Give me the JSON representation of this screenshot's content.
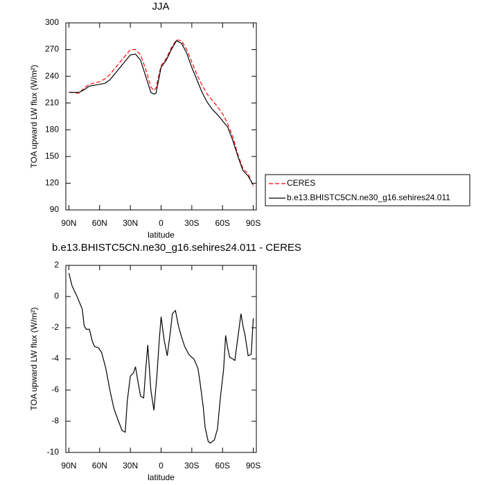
{
  "chart_data": [
    {
      "type": "line",
      "title": "JJA",
      "xlabel": "latitude",
      "ylabel": "TOA upward LW flux (W/m²)",
      "x": [
        90,
        80,
        75,
        70,
        60,
        55,
        50,
        40,
        30,
        25,
        20,
        15,
        10,
        7,
        5,
        0,
        -5,
        -10,
        -15,
        -20,
        -25,
        -30,
        -35,
        -40,
        -45,
        -50,
        -55,
        -60,
        -65,
        -70,
        -75,
        -80,
        -85,
        -90
      ],
      "series": [
        {
          "name": "CERES",
          "color": "#ff0000",
          "dashed": true,
          "values": [
            222,
            221,
            227,
            231,
            234,
            237,
            242,
            256,
            270,
            270,
            264,
            248,
            228,
            224,
            227,
            252,
            260,
            272,
            281,
            280,
            270,
            256,
            242,
            230,
            220,
            213,
            206,
            198,
            187,
            172,
            152,
            136,
            131,
            116
          ]
        },
        {
          "name": "b.e13.BHISTC5CN.ne30_g16.sehires24.011",
          "color": "#000000",
          "dashed": false,
          "values": [
            222,
            222,
            225,
            229,
            231,
            232,
            236,
            250,
            264,
            265,
            258,
            240,
            222,
            220,
            221,
            250,
            258,
            270,
            280,
            277,
            266,
            250,
            236,
            222,
            211,
            203,
            197,
            190,
            183,
            168,
            150,
            134,
            128,
            118
          ]
        }
      ],
      "xlim": [
        93,
        -93
      ],
      "xticks": [
        {
          "value": 90,
          "label": "90N"
        },
        {
          "value": 60,
          "label": "60N"
        },
        {
          "value": 30,
          "label": "30N"
        },
        0,
        {
          "value": -30,
          "label": "30S"
        },
        {
          "value": -60,
          "label": "60S"
        },
        {
          "value": -90,
          "label": "90S"
        }
      ],
      "ylim": [
        90,
        300
      ],
      "yticks": [
        90,
        120,
        150,
        180,
        210,
        240,
        270,
        300
      ],
      "legend": "right"
    },
    {
      "type": "line",
      "title": "b.e13.BHISTC5CN.ne30_g16.sehires24.011 - CERES",
      "xlabel": "latitude",
      "ylabel": "TOA upward LW flux (W/m²)",
      "x": [
        90,
        87,
        82,
        77,
        75,
        73,
        70,
        67,
        65,
        61,
        58,
        54,
        50,
        46,
        41,
        38,
        35,
        33,
        30,
        27,
        25,
        23,
        20,
        17,
        15,
        13,
        10,
        7,
        4,
        2,
        0,
        -3,
        -6,
        -9,
        -11,
        -14,
        -17,
        -20,
        -23,
        -27,
        -30,
        -32,
        -36,
        -38,
        -41,
        -43,
        -46,
        -48,
        -52,
        -55,
        -58,
        -61,
        -63,
        -65,
        -67,
        -70,
        -72,
        -75,
        -78,
        -80,
        -82,
        -85,
        -88,
        -90
      ],
      "values": [
        1.5,
        0.7,
        0,
        -0.8,
        -1.9,
        -2.1,
        -2.1,
        -2.9,
        -3.2,
        -3.3,
        -3.6,
        -4.6,
        -6,
        -7.2,
        -8.1,
        -8.6,
        -8.7,
        -6.7,
        -5.1,
        -4.9,
        -4.5,
        -5.3,
        -6.4,
        -6.5,
        -4.7,
        -3.1,
        -6,
        -7.3,
        -5,
        -3,
        -1.3,
        -2.8,
        -3.8,
        -2.3,
        -1.1,
        -0.9,
        -1.9,
        -2.6,
        -3.2,
        -3.7,
        -3.9,
        -4,
        -4.6,
        -5.5,
        -7,
        -8.4,
        -9.3,
        -9.4,
        -9.2,
        -8.5,
        -6.4,
        -4.7,
        -2.5,
        -3.3,
        -3.9,
        -4,
        -4.1,
        -2.6,
        -1.1,
        -1.9,
        -2.5,
        -3.8,
        -3.7,
        -1.4
      ],
      "color": "#000000",
      "xlim": [
        93,
        -93
      ],
      "xticks": [
        {
          "value": 90,
          "label": "90N"
        },
        {
          "value": 60,
          "label": "60N"
        },
        {
          "value": 30,
          "label": "30N"
        },
        0,
        {
          "value": -30,
          "label": "30S"
        },
        {
          "value": -60,
          "label": "60S"
        },
        {
          "value": -90,
          "label": "90S"
        }
      ],
      "ylim": [
        -10,
        2
      ],
      "yticks": [
        -10,
        -8,
        -6,
        -4,
        -2,
        0,
        2
      ]
    }
  ]
}
